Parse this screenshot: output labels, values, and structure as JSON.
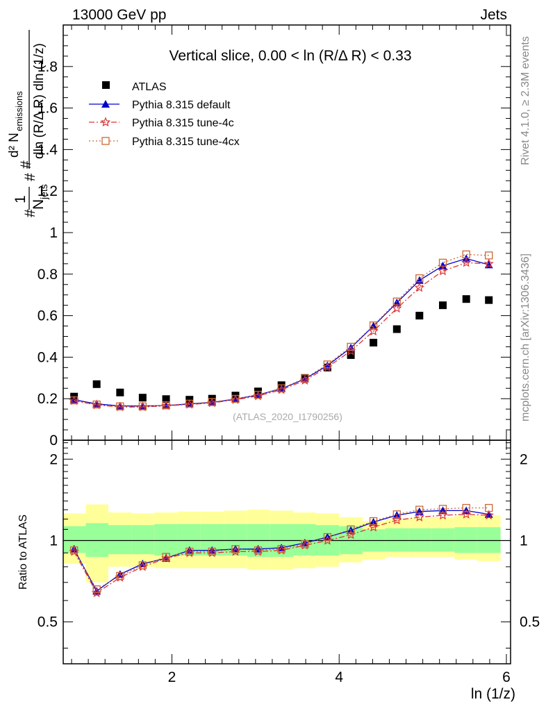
{
  "header": {
    "left": "13000 GeV pp",
    "right": "Jets",
    "side_top": "Rivet 4.1.0, ≥ 2.3M events",
    "side_bottom": "mcplots.cern.ch [arXiv:1306.3436]"
  },
  "chart_data": {
    "type": "scatter",
    "title": "Vertical slice, 0.00 < ln (R/Δ R) < 0.33",
    "watermark": "(ATLAS_2020_I1790256)",
    "xlabel": "ln (1/z)",
    "ylabel_parts": [
      "1",
      "N",
      "jets",
      "d² N",
      "emissions",
      "dln (R/Δ R) dln (1/z)"
    ],
    "ratio_ylabel": "Ratio to ATLAS",
    "xlim": [
      0.7,
      6.05
    ],
    "ylim": [
      0,
      2.0
    ],
    "ratio_ylim": [
      0.35,
      2.35
    ],
    "x_ticks": [
      2,
      4,
      6
    ],
    "x_tick_labels": [
      "2",
      "4",
      "6"
    ],
    "y_ticks": [
      0,
      0.2,
      0.4,
      0.6,
      0.8,
      1,
      1.2,
      1.4,
      1.6,
      1.8
    ],
    "y_tick_labels": [
      "0",
      "0.2",
      "0.4",
      "0.6",
      "0.8",
      "1",
      "1.2",
      "1.4",
      "1.6",
      "1.8"
    ],
    "ratio_ticks": [
      0.5,
      1,
      2
    ],
    "ratio_tick_labels": [
      "0.5",
      "1",
      "2"
    ],
    "x": [
      0.83,
      1.1,
      1.38,
      1.65,
      1.93,
      2.21,
      2.48,
      2.76,
      3.03,
      3.31,
      3.59,
      3.86,
      4.14,
      4.41,
      4.69,
      4.96,
      5.24,
      5.52,
      5.79
    ],
    "x_edges": [
      0.7,
      0.97,
      1.24,
      1.52,
      1.79,
      2.07,
      2.34,
      2.62,
      2.9,
      3.17,
      3.45,
      3.72,
      4.0,
      4.28,
      4.55,
      4.83,
      5.1,
      5.38,
      5.65,
      5.93
    ],
    "band_inner": [
      [
        0.9,
        1.13
      ],
      [
        0.87,
        1.16
      ],
      [
        0.89,
        1.14
      ],
      [
        0.89,
        1.14
      ],
      [
        0.88,
        1.15
      ],
      [
        0.88,
        1.15
      ],
      [
        0.88,
        1.15
      ],
      [
        0.88,
        1.15
      ],
      [
        0.87,
        1.15
      ],
      [
        0.87,
        1.15
      ],
      [
        0.88,
        1.15
      ],
      [
        0.88,
        1.14
      ],
      [
        0.89,
        1.13
      ],
      [
        0.91,
        1.1
      ],
      [
        0.91,
        1.11
      ],
      [
        0.91,
        1.11
      ],
      [
        0.91,
        1.11
      ],
      [
        0.9,
        1.12
      ],
      [
        0.9,
        1.12
      ]
    ],
    "band_outer": [
      [
        0.82,
        1.26
      ],
      [
        0.7,
        1.36
      ],
      [
        0.8,
        1.27
      ],
      [
        0.8,
        1.26
      ],
      [
        0.79,
        1.27
      ],
      [
        0.79,
        1.28
      ],
      [
        0.79,
        1.28
      ],
      [
        0.79,
        1.29
      ],
      [
        0.78,
        1.3
      ],
      [
        0.78,
        1.29
      ],
      [
        0.79,
        1.27
      ],
      [
        0.8,
        1.26
      ],
      [
        0.83,
        1.22
      ],
      [
        0.85,
        1.18
      ],
      [
        0.87,
        1.2
      ],
      [
        0.87,
        1.21
      ],
      [
        0.87,
        1.22
      ],
      [
        0.85,
        1.24
      ],
      [
        0.84,
        1.24
      ]
    ],
    "series": [
      {
        "name": "ATLAS",
        "color": "#000000",
        "marker": "square",
        "values": [
          0.21,
          0.27,
          0.23,
          0.205,
          0.198,
          0.195,
          0.2,
          0.215,
          0.235,
          0.265,
          0.3,
          0.35,
          0.41,
          0.47,
          0.535,
          0.6,
          0.65,
          0.68,
          0.675
        ]
      },
      {
        "name": "Pythia 8.315 default",
        "color": "#0000cc",
        "marker": "triangle",
        "dash": "none",
        "values": [
          0.195,
          0.175,
          0.165,
          0.165,
          0.167,
          0.175,
          0.182,
          0.198,
          0.218,
          0.248,
          0.295,
          0.36,
          0.445,
          0.55,
          0.662,
          0.77,
          0.84,
          0.875,
          0.845
        ],
        "ratio": [
          0.93,
          0.65,
          0.75,
          0.82,
          0.86,
          0.92,
          0.92,
          0.93,
          0.93,
          0.94,
          0.98,
          1.03,
          1.09,
          1.17,
          1.24,
          1.28,
          1.29,
          1.29,
          1.25
        ]
      },
      {
        "name": "Pythia 8.315 tune-4c",
        "color": "#dd3333",
        "marker": "star",
        "dash": "8,3,2,3",
        "values": [
          0.19,
          0.17,
          0.16,
          0.16,
          0.166,
          0.172,
          0.18,
          0.195,
          0.213,
          0.243,
          0.288,
          0.352,
          0.43,
          0.525,
          0.635,
          0.735,
          0.815,
          0.855,
          0.85
        ],
        "ratio": [
          0.91,
          0.64,
          0.73,
          0.8,
          0.86,
          0.9,
          0.9,
          0.91,
          0.91,
          0.92,
          0.96,
          1.0,
          1.05,
          1.12,
          1.19,
          1.22,
          1.24,
          1.25,
          1.24
        ]
      },
      {
        "name": "Pythia 8.315 tune-4cx",
        "color": "#cc6633",
        "marker": "open-square",
        "dash": "2,3",
        "values": [
          0.192,
          0.172,
          0.163,
          0.163,
          0.168,
          0.176,
          0.184,
          0.199,
          0.219,
          0.25,
          0.298,
          0.365,
          0.45,
          0.553,
          0.668,
          0.78,
          0.855,
          0.895,
          0.89
        ],
        "ratio": [
          0.92,
          0.66,
          0.74,
          0.81,
          0.87,
          0.91,
          0.91,
          0.93,
          0.92,
          0.93,
          0.97,
          1.03,
          1.1,
          1.18,
          1.25,
          1.3,
          1.31,
          1.32,
          1.32
        ]
      }
    ]
  }
}
